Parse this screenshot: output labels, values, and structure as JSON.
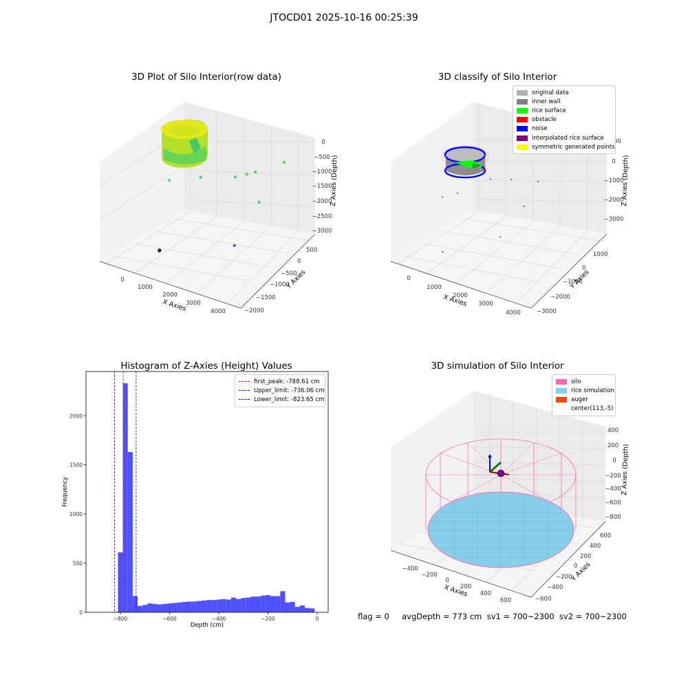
{
  "figure": {
    "title": "JTOCD01 2025-10-16 00:25:39",
    "footer": "flag = 0     avgDepth = 773 cm  sv1 = 700~2300  sv2 = 700~2300"
  },
  "colors": {
    "pane": "#f2f2f2",
    "grid": "#d9d9d9",
    "silo_pink": "#ff69b4",
    "rice_blue": "#87ceeb",
    "auger": "#ff4500",
    "noise": "#0000ff",
    "rice_surface": "#00ff00",
    "inner_wall": "#808080",
    "original": "#b0b0b0",
    "obstacle": "#ff0000",
    "interpolated": "#800080",
    "symmetric": "#ffff00",
    "hist_bar": "#5050ff",
    "peak_line": "#ff0000",
    "limit_line": "#0000cc"
  },
  "panels": [
    {
      "title": "3D Plot of Silo Interior(row data)",
      "xlabel": "X Axies",
      "ylabel": "Y Axies",
      "zlabel": "Z Axies (Depth)",
      "x_ticks": [
        "0",
        "1000",
        "2000",
        "3000",
        "4000"
      ],
      "y_ticks": [
        "500",
        "0",
        "−500",
        "−1000",
        "−1500",
        "−2000"
      ],
      "z_ticks": [
        "0",
        "−500",
        "−1000",
        "−1500",
        "−2000",
        "−2500",
        "−3000"
      ]
    },
    {
      "title": "3D classify of Silo Interior",
      "xlabel": "X Axies",
      "ylabel": "Y Axies",
      "zlabel": "Z Axies (Depth)",
      "x_ticks": [
        "0",
        "1000",
        "2000",
        "3000",
        "4000"
      ],
      "y_ticks": [
        "1000",
        "0",
        "−1000",
        "−2000",
        "−3000"
      ],
      "z_ticks": [
        "1000",
        "0",
        "−1000",
        "−2000",
        "−3000"
      ],
      "legend": [
        {
          "label": "original data",
          "color": "#b0b0b0"
        },
        {
          "label": "inner wall",
          "color": "#808080"
        },
        {
          "label": "rice surface",
          "color": "#00ff00"
        },
        {
          "label": "obstacle",
          "color": "#ff0000"
        },
        {
          "label": "noise",
          "color": "#0000ff"
        },
        {
          "label": "interpolated rice surface",
          "color": "#800080"
        },
        {
          "label": "symmetric generated points",
          "color": "#ffff00"
        }
      ]
    },
    {
      "title": "Histogram of Z-Axies (Height) Values"
    },
    {
      "title": "3D simulation of Silo Interior",
      "xlabel": "X Axies",
      "ylabel": "Y Axies",
      "zlabel": "Z Axies (Depth)",
      "x_ticks": [
        "−400",
        "−200",
        "0",
        "200",
        "400",
        "600"
      ],
      "y_ticks": [
        "600",
        "400",
        "200",
        "0",
        "−200",
        "−400",
        "−600"
      ],
      "z_ticks": [
        "400",
        "200",
        "0",
        "−200",
        "−400",
        "−600",
        "−800"
      ],
      "legend": [
        {
          "label": "silo",
          "color": "#ff69b4"
        },
        {
          "label": "rice simulation",
          "color": "#87ceeb"
        },
        {
          "label": "auger",
          "color": "#ff4500"
        },
        {
          "label": "center(113,-5)",
          "color": "#ffffff"
        }
      ]
    }
  ],
  "chart_data": [
    {
      "type": "scatter",
      "title": "3D Plot of Silo Interior(row data)",
      "xlabel": "X Axies",
      "ylabel": "Y Axies",
      "zlabel": "Z Axies (Depth)",
      "xlim": [
        -400,
        4400
      ],
      "ylim": [
        -2100,
        700
      ],
      "zlim": [
        -3200,
        200
      ],
      "series": [
        {
          "values": [
            {
              "x": 200,
              "y": 200,
              "z": -600
            },
            {
              "x": 1000,
              "y": 0,
              "z": -1000
            },
            {
              "x": 1200,
              "y": -100,
              "z": -1050
            },
            {
              "x": 1500,
              "y": -200,
              "z": -1150
            },
            {
              "x": 2500,
              "y": -400,
              "z": -1300
            },
            {
              "x": 600,
              "y": -300,
              "z": -1600
            },
            {
              "x": 3300,
              "y": -700,
              "z": -1400
            },
            {
              "x": 900,
              "y": -900,
              "z": -2600
            },
            {
              "x": 3000,
              "y": -1400,
              "z": -3000
            }
          ]
        }
      ]
    },
    {
      "type": "scatter",
      "title": "3D classify of Silo Interior",
      "xlabel": "X Axies",
      "ylabel": "Y Axies",
      "zlabel": "Z Axies (Depth)",
      "xlim": [
        -400,
        4400
      ],
      "ylim": [
        -3200,
        1300
      ],
      "zlim": [
        -3300,
        1200
      ],
      "legend_position": "upper-right",
      "series": [
        {
          "name": "noise",
          "values": [
            {
              "x": 1200,
              "y": 0,
              "z": -800
            },
            {
              "x": 2000,
              "y": -200,
              "z": -900
            },
            {
              "x": 2600,
              "y": -400,
              "z": -1000
            },
            {
              "x": 1400,
              "y": -500,
              "z": -1600
            },
            {
              "x": 3500,
              "y": -800,
              "z": -1700
            },
            {
              "x": 1800,
              "y": -1200,
              "z": -2600
            },
            {
              "x": 3900,
              "y": -1000,
              "z": -1900
            },
            {
              "x": 3200,
              "y": -2200,
              "z": -3100
            }
          ]
        }
      ]
    },
    {
      "type": "bar",
      "title": "Histogram of Z-Axies (Height) Values",
      "xlabel": "Depth (cm)",
      "ylabel": "Frequency",
      "xlim": [
        -940,
        45
      ],
      "ylim": [
        0,
        2450
      ],
      "x_ticks": [
        -800,
        -600,
        -400,
        -200,
        0
      ],
      "y_ticks": [
        0,
        500,
        1000,
        1500,
        2000
      ],
      "bin_edges": [
        -830,
        -810,
        -790,
        -770,
        -750,
        -730,
        -710,
        -690,
        -670,
        -650,
        -630,
        -610,
        -590,
        -570,
        -550,
        -530,
        -510,
        -490,
        -470,
        -450,
        -430,
        -410,
        -390,
        -370,
        -350,
        -330,
        -310,
        -290,
        -270,
        -250,
        -230,
        -210,
        -190,
        -170,
        -150,
        -130,
        -110,
        -90,
        -70,
        -50,
        -30,
        -10
      ],
      "values": [
        5,
        610,
        2330,
        1630,
        165,
        65,
        75,
        90,
        85,
        80,
        85,
        90,
        95,
        100,
        105,
        110,
        110,
        115,
        120,
        125,
        125,
        130,
        135,
        130,
        150,
        135,
        145,
        150,
        160,
        160,
        170,
        175,
        165,
        165,
        215,
        100,
        105,
        55,
        70,
        45,
        40
      ],
      "vlines": [
        {
          "label": "first_peak: -788.61 cm",
          "x": -788.61,
          "color": "#ff0000"
        },
        {
          "label": "Upper_limit: -736.06 cm",
          "x": -736.06,
          "color": "#0000cc"
        },
        {
          "label": "Lower_limit: -823.65 cm",
          "x": -823.65,
          "color": "#0000cc"
        }
      ],
      "legend_position": "upper-right"
    },
    {
      "type": "scatter",
      "title": "3D simulation of Silo Interior",
      "xlabel": "X Axies",
      "ylabel": "Y Axies",
      "zlabel": "Z Axies (Depth)",
      "xlim": [
        -500,
        750
      ],
      "ylim": [
        -750,
        700
      ],
      "zlim": [
        -900,
        500
      ],
      "series": [
        {
          "name": "center(113,-5)",
          "values": [
            {
              "x": 113,
              "y": -5,
              "z": 0
            }
          ]
        }
      ],
      "legend_position": "upper-right"
    }
  ]
}
